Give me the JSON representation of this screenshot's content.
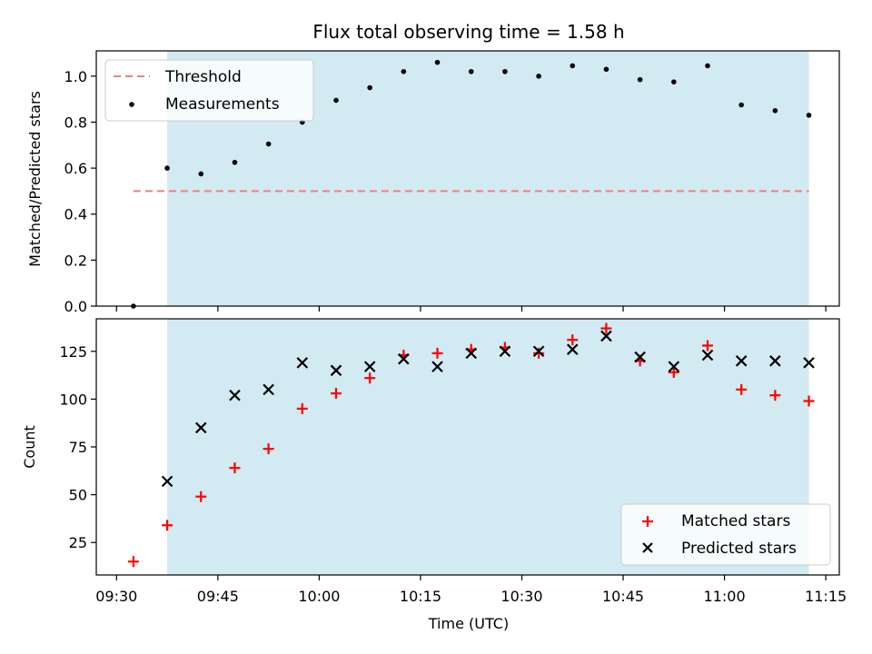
{
  "chart_data": [
    {
      "type": "scatter",
      "title": "Flux total observing time = 1.58 h",
      "xlabel": "",
      "ylabel": "Matched/Predicted stars",
      "ylim": [
        0,
        1.11
      ],
      "yticks": [
        0.0,
        0.2,
        0.4,
        0.6,
        0.8,
        1.0
      ],
      "ytick_labels": [
        "0.0",
        "0.2",
        "0.4",
        "0.6",
        "0.8",
        "1.0"
      ],
      "xlim": [
        "09:27",
        "11:17"
      ],
      "xticks": [
        "09:30",
        "09:45",
        "10:00",
        "10:15",
        "10:30",
        "10:45",
        "11:00",
        "11:15"
      ],
      "shaded_region": {
        "x_start": "09:37.5",
        "x_end": "11:12.5",
        "color": "#add8e6"
      },
      "threshold": {
        "name": "Threshold",
        "y": 0.5,
        "x_start": "09:32.5",
        "x_end": "11:12.5",
        "color": "#f08080"
      },
      "series": [
        {
          "name": "Measurements",
          "color": "#000000",
          "x": [
            "09:32.5",
            "09:37.5",
            "09:42.5",
            "09:47.5",
            "09:52.5",
            "09:57.5",
            "10:02.5",
            "10:07.5",
            "10:12.5",
            "10:17.5",
            "10:22.5",
            "10:27.5",
            "10:32.5",
            "10:37.5",
            "10:42.5",
            "10:47.5",
            "10:52.5",
            "10:57.5",
            "11:02.5",
            "11:07.5",
            "11:12.5"
          ],
          "values": [
            0.0,
            0.6,
            0.575,
            0.625,
            0.705,
            0.8,
            0.895,
            0.95,
            1.02,
            1.06,
            1.02,
            1.02,
            1.0,
            1.045,
            1.03,
            0.985,
            0.975,
            1.045,
            0.875,
            0.85,
            0.83
          ]
        }
      ],
      "legend": {
        "placement": "top-left",
        "entries": [
          "Threshold",
          "Measurements"
        ]
      }
    },
    {
      "type": "scatter",
      "title": "",
      "xlabel": "Time (UTC)",
      "ylabel": "Count",
      "ylim": [
        8,
        142
      ],
      "yticks": [
        25,
        50,
        75,
        100,
        125
      ],
      "ytick_labels": [
        "25",
        "50",
        "75",
        "100",
        "125"
      ],
      "xlim": [
        "09:27",
        "11:17"
      ],
      "xticks": [
        "09:30",
        "09:45",
        "10:00",
        "10:15",
        "10:30",
        "10:45",
        "11:00",
        "11:15"
      ],
      "xtick_labels": [
        "09:30",
        "09:45",
        "10:00",
        "10:15",
        "10:30",
        "10:45",
        "11:00",
        "11:15"
      ],
      "shaded_region": {
        "x_start": "09:37.5",
        "x_end": "11:12.5",
        "color": "#add8e6"
      },
      "series": [
        {
          "name": "Matched stars",
          "marker": "plus",
          "color": "#ff0000",
          "x": [
            "09:32.5",
            "09:37.5",
            "09:42.5",
            "09:47.5",
            "09:52.5",
            "09:57.5",
            "10:02.5",
            "10:07.5",
            "10:12.5",
            "10:17.5",
            "10:22.5",
            "10:27.5",
            "10:32.5",
            "10:37.5",
            "10:42.5",
            "10:47.5",
            "10:52.5",
            "10:57.5",
            "11:02.5",
            "11:07.5",
            "11:12.5"
          ],
          "values": [
            15,
            34,
            49,
            64,
            74,
            95,
            103,
            111,
            123,
            124,
            126,
            127,
            124,
            131,
            137,
            120,
            114,
            128,
            105,
            102,
            99
          ]
        },
        {
          "name": "Predicted stars",
          "marker": "x",
          "color": "#000000",
          "x": [
            "09:37.5",
            "09:42.5",
            "09:47.5",
            "09:52.5",
            "09:57.5",
            "10:02.5",
            "10:07.5",
            "10:12.5",
            "10:17.5",
            "10:22.5",
            "10:27.5",
            "10:32.5",
            "10:37.5",
            "10:42.5",
            "10:47.5",
            "10:52.5",
            "10:57.5",
            "11:02.5",
            "11:07.5",
            "11:12.5"
          ],
          "values": [
            57,
            85,
            102,
            105,
            119,
            115,
            117,
            121,
            117,
            124,
            125,
            125,
            126,
            133,
            122,
            117,
            123,
            120,
            120,
            119
          ]
        }
      ],
      "legend": {
        "placement": "bottom-right",
        "entries": [
          "Matched stars",
          "Predicted stars"
        ]
      }
    }
  ]
}
